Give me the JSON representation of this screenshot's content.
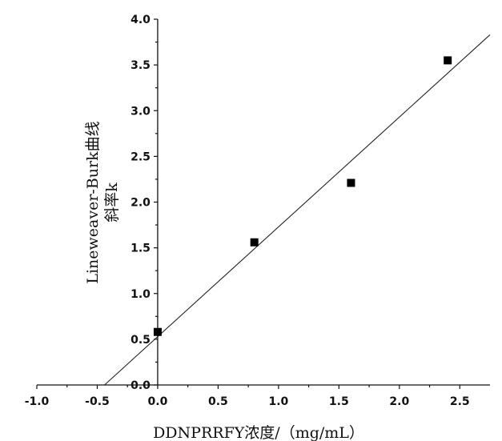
{
  "chart_data": {
    "type": "scatter",
    "title": "",
    "xlabel": "DDNPRRFY浓度/（mg/mL）",
    "ylabel_line1": "Lineweaver-Burk曲线",
    "ylabel_line2": "斜率k",
    "xlim": [
      -1.0,
      2.75
    ],
    "ylim": [
      0.0,
      4.0
    ],
    "x_ticks": [
      -1.0,
      -0.5,
      0.0,
      0.5,
      1.0,
      1.5,
      2.0,
      2.5
    ],
    "x_tick_labels": [
      "-1.0",
      "-0.5",
      "0.0",
      "0.5",
      "1.0",
      "1.5",
      "2.0",
      "2.5"
    ],
    "y_ticks": [
      0.0,
      0.5,
      1.0,
      1.5,
      2.0,
      2.5,
      3.0,
      3.5,
      4.0
    ],
    "y_tick_labels": [
      "0.0",
      "0.5",
      "1.0",
      "1.5",
      "2.0",
      "2.5",
      "3.0",
      "3.5",
      "4.0"
    ],
    "series": [
      {
        "x": [
          0.0,
          0.8,
          1.6,
          2.4
        ],
        "y": [
          0.58,
          1.56,
          2.21,
          3.55
        ]
      }
    ],
    "fit_line": {
      "x": [
        -0.44,
        2.75
      ],
      "y": [
        0.0,
        3.83
      ]
    },
    "grid": false,
    "legend": "none"
  }
}
